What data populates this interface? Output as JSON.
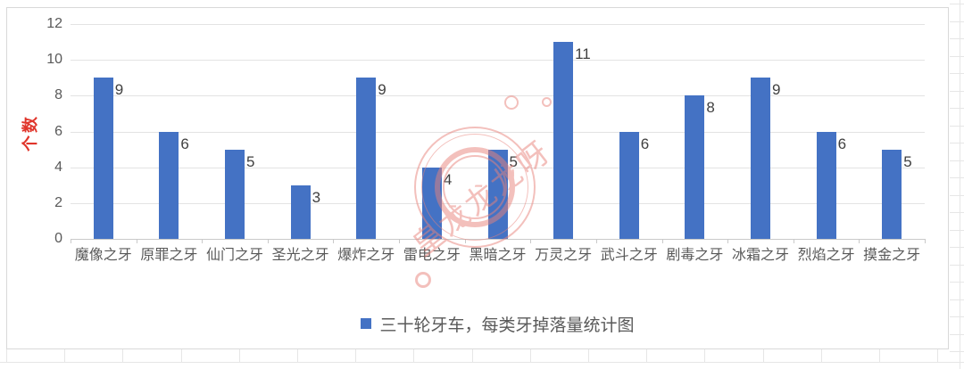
{
  "chart_data": {
    "type": "bar",
    "title": "",
    "categories": [
      "魔像之牙",
      "原罪之牙",
      "仙门之牙",
      "圣光之牙",
      "爆炸之牙",
      "雷电之牙",
      "黑暗之牙",
      "万灵之牙",
      "武斗之牙",
      "剧毒之牙",
      "冰霜之牙",
      "烈焰之牙",
      "摸金之牙"
    ],
    "values": [
      9,
      6,
      5,
      3,
      9,
      4,
      5,
      11,
      6,
      8,
      9,
      6,
      5
    ],
    "series": [
      {
        "name": "三十轮牙车，每类牙掉落量统计图",
        "values": [
          9,
          6,
          5,
          3,
          9,
          4,
          5,
          11,
          6,
          8,
          9,
          6,
          5
        ]
      }
    ],
    "xlabel": "",
    "ylabel": "个数",
    "ylim": [
      0,
      12
    ],
    "yticks": [
      0,
      2,
      4,
      6,
      8,
      10,
      12
    ],
    "grid": true,
    "data_labels": true,
    "legend_position": "bottom-center",
    "bar_color": "#4472C4"
  },
  "legend": {
    "label": "三十轮牙车，每类牙掉落量统计图",
    "marker_color": "#4472C4"
  },
  "axes": {
    "y_title": "个数",
    "y_title_color": "#E0352B",
    "tick_label_color": "#595959",
    "data_label_color": "#404040"
  },
  "theme": {
    "bar_fill": "#4472C4",
    "plot_gridline": "#E3E3E3",
    "axis_line": "#C9C9C9",
    "chart_border": "#D9D9D9",
    "sheet_gridline": "#E6E6E6"
  },
  "watermark": {
    "text": "皇龙龙龙呀",
    "color": "#E8837C"
  }
}
